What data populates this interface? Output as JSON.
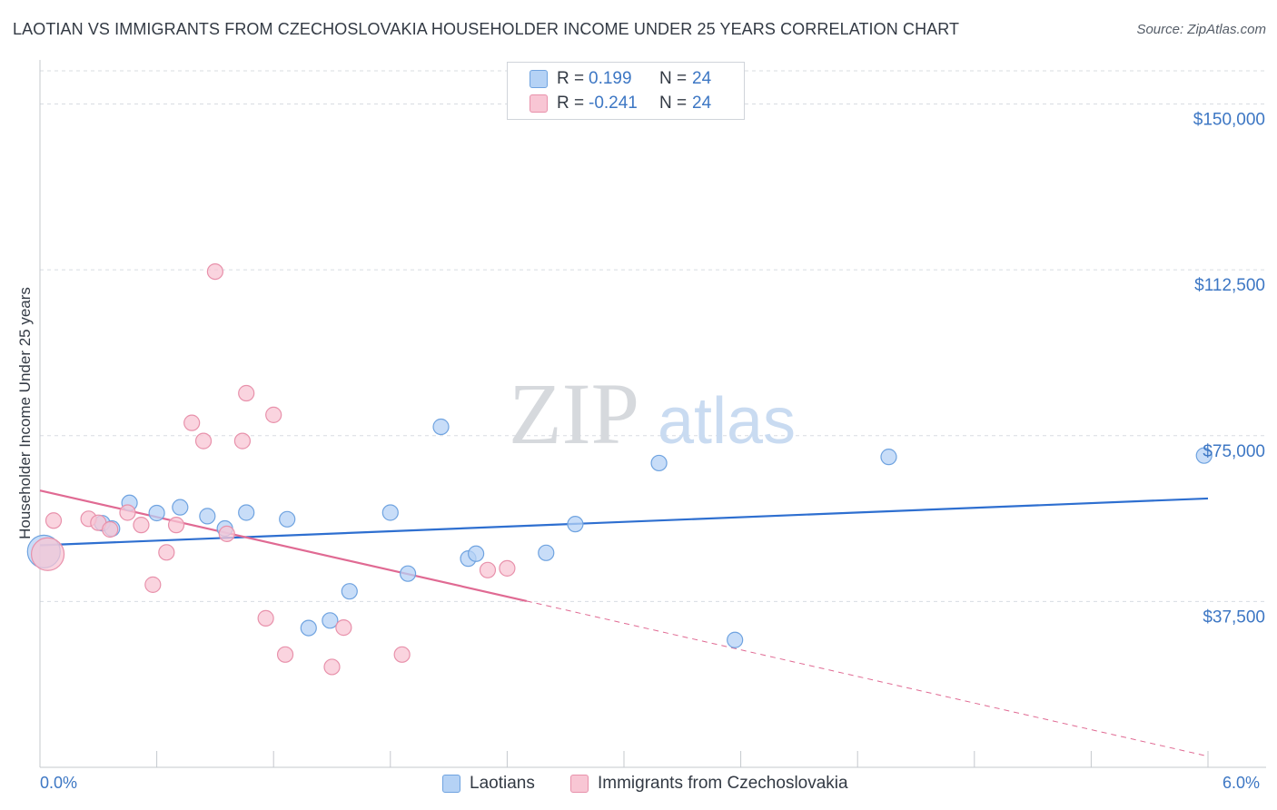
{
  "title": "LAOTIAN VS IMMIGRANTS FROM CZECHOSLOVAKIA HOUSEHOLDER INCOME UNDER 25 YEARS CORRELATION CHART",
  "source": "Source: ZipAtlas.com",
  "watermark": {
    "zip": "ZIP",
    "atlas": "atlas"
  },
  "legend": {
    "rows": [
      {
        "r_label": "R =",
        "r_value": "0.199",
        "n_label": "N =",
        "n_value": "24"
      },
      {
        "r_label": "R =",
        "r_value": "-0.241",
        "n_label": "N =",
        "n_value": "24"
      }
    ]
  },
  "colors": {
    "blue_fill": "#b5d2f5",
    "blue_stroke": "#6fa3e0",
    "blue_line": "#2e6fd0",
    "pink_fill": "#f8c6d4",
    "pink_stroke": "#e891ab",
    "pink_line": "#e06a93",
    "axis_text": "#3d77c4",
    "grid": "#d8dce2"
  },
  "chart_data": {
    "type": "scatter",
    "title": "LAOTIAN VS IMMIGRANTS FROM CZECHOSLOVAKIA HOUSEHOLDER INCOME UNDER 25 YEARS CORRELATION CHART",
    "xlabel": "",
    "ylabel": "Householder Income Under 25 years",
    "xlim": [
      0,
      6
    ],
    "ylim": [
      0,
      157500
    ],
    "x_tick_labels": [
      "0.0%",
      "6.0%"
    ],
    "y_ticks": [
      37500,
      75000,
      112500,
      150000
    ],
    "y_tick_labels": [
      "$37,500",
      "$75,000",
      "$112,500",
      "$150,000"
    ],
    "grid": true,
    "legend_position": "top-center and bottom",
    "series": [
      {
        "name": "Laotians",
        "color": "#b5d2f5",
        "r": 0.199,
        "n": 24,
        "points": [
          {
            "x": 0.02,
            "y": 48800,
            "big": true
          },
          {
            "x": 0.32,
            "y": 55200
          },
          {
            "x": 0.37,
            "y": 54000
          },
          {
            "x": 0.46,
            "y": 59800
          },
          {
            "x": 0.6,
            "y": 57500
          },
          {
            "x": 0.72,
            "y": 58800
          },
          {
            "x": 0.86,
            "y": 56800
          },
          {
            "x": 0.95,
            "y": 54000
          },
          {
            "x": 1.06,
            "y": 57600
          },
          {
            "x": 1.27,
            "y": 56100
          },
          {
            "x": 1.38,
            "y": 31500
          },
          {
            "x": 1.49,
            "y": 33200
          },
          {
            "x": 1.59,
            "y": 39800
          },
          {
            "x": 1.8,
            "y": 57600
          },
          {
            "x": 1.89,
            "y": 43800
          },
          {
            "x": 2.06,
            "y": 77000
          },
          {
            "x": 2.2,
            "y": 47200
          },
          {
            "x": 2.24,
            "y": 48300
          },
          {
            "x": 2.6,
            "y": 48500
          },
          {
            "x": 2.75,
            "y": 55000
          },
          {
            "x": 3.18,
            "y": 68800
          },
          {
            "x": 3.57,
            "y": 28800
          },
          {
            "x": 4.36,
            "y": 70200
          },
          {
            "x": 5.98,
            "y": 70500
          }
        ],
        "trend": {
          "x0": 0,
          "y0": 50200,
          "x1": 6,
          "y1": 60800
        }
      },
      {
        "name": "Immigrants from Czechoslovakia",
        "color": "#f8c6d4",
        "r": -0.241,
        "n": 24,
        "points": [
          {
            "x": 0.04,
            "y": 48200,
            "big": true
          },
          {
            "x": 0.07,
            "y": 55800
          },
          {
            "x": 0.25,
            "y": 56200
          },
          {
            "x": 0.3,
            "y": 55300
          },
          {
            "x": 0.36,
            "y": 53800
          },
          {
            "x": 0.45,
            "y": 57600
          },
          {
            "x": 0.52,
            "y": 54800
          },
          {
            "x": 0.58,
            "y": 41300
          },
          {
            "x": 0.65,
            "y": 48600
          },
          {
            "x": 0.7,
            "y": 54800
          },
          {
            "x": 0.78,
            "y": 77900
          },
          {
            "x": 0.84,
            "y": 73800
          },
          {
            "x": 0.9,
            "y": 112100
          },
          {
            "x": 0.96,
            "y": 52800
          },
          {
            "x": 1.04,
            "y": 73800
          },
          {
            "x": 1.06,
            "y": 84600
          },
          {
            "x": 1.16,
            "y": 33700
          },
          {
            "x": 1.2,
            "y": 79700
          },
          {
            "x": 1.26,
            "y": 25500
          },
          {
            "x": 1.5,
            "y": 22700
          },
          {
            "x": 1.56,
            "y": 31600
          },
          {
            "x": 1.86,
            "y": 25500
          },
          {
            "x": 2.3,
            "y": 44600
          },
          {
            "x": 2.4,
            "y": 45000
          }
        ],
        "trend": {
          "x0": 0,
          "y0": 62600,
          "x1": 2.5,
          "y1": 37600,
          "dashed_to": {
            "x": 6,
            "y": 2500
          }
        }
      }
    ]
  },
  "axis": {
    "x_left": "0.0%",
    "x_right": "6.0%"
  }
}
